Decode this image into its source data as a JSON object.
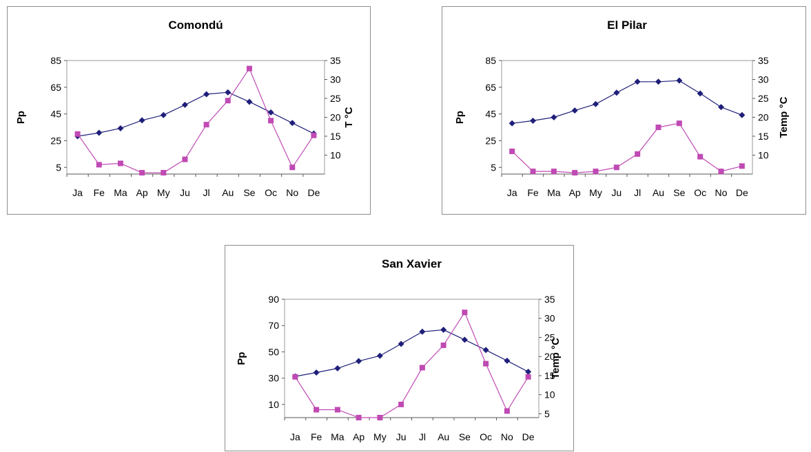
{
  "chart_data": [
    {
      "type": "line",
      "title": "Comondú",
      "categories": [
        "Ja",
        "Fe",
        "Ma",
        "Ap",
        "My",
        "Ju",
        "Jl",
        "Au",
        "Se",
        "Oc",
        "No",
        "De"
      ],
      "ylabel": "Pp",
      "y2label": "T °C",
      "ylim": [
        0,
        85
      ],
      "yticks": [
        5,
        25,
        45,
        65,
        85
      ],
      "y2lim": [
        5,
        35
      ],
      "y2ticks": [
        10,
        15,
        20,
        25,
        30,
        35
      ],
      "grid": false,
      "series": [
        {
          "axis": "right",
          "marker": "diamond",
          "color": "#1f1f7a",
          "values": [
            15.0,
            15.9,
            17.1,
            19.2,
            20.6,
            23.3,
            26.1,
            26.6,
            24.1,
            21.3,
            18.5,
            15.7
          ]
        },
        {
          "axis": "left",
          "marker": "square",
          "color": "#c04ab4",
          "values": [
            30,
            7,
            8,
            1,
            1,
            11,
            37,
            55,
            79,
            40,
            5,
            29
          ]
        }
      ]
    },
    {
      "type": "line",
      "title": "El Pilar",
      "categories": [
        "Ja",
        "Fe",
        "Ma",
        "Ap",
        "My",
        "Ju",
        "Jl",
        "Au",
        "Se",
        "Oc",
        "No",
        "De"
      ],
      "ylabel": "Pp",
      "y2label": "Temp °C",
      "ylim": [
        0,
        85
      ],
      "yticks": [
        5,
        25,
        45,
        65,
        85
      ],
      "y2lim": [
        5,
        35
      ],
      "y2ticks": [
        10,
        15,
        20,
        25,
        30,
        35
      ],
      "grid": false,
      "series": [
        {
          "axis": "right",
          "marker": "diamond",
          "color": "#1f1f7a",
          "values": [
            18.4,
            19.1,
            20.0,
            21.8,
            23.5,
            26.5,
            29.4,
            29.4,
            29.7,
            26.3,
            22.7,
            20.6
          ]
        },
        {
          "axis": "left",
          "marker": "square",
          "color": "#c04ab4",
          "values": [
            17,
            2,
            2,
            1,
            2,
            5,
            15,
            35,
            38,
            13,
            2,
            6
          ]
        }
      ]
    },
    {
      "type": "line",
      "title": "San Xavier",
      "categories": [
        "Ja",
        "Fe",
        "Ma",
        "Ap",
        "My",
        "Ju",
        "Jl",
        "Au",
        "Se",
        "Oc",
        "No",
        "De"
      ],
      "ylabel": "Pp",
      "y2label": "Temp °C",
      "ylim": [
        0,
        90
      ],
      "yticks": [
        10,
        30,
        50,
        70,
        90
      ],
      "y2lim": [
        4,
        35
      ],
      "y2ticks": [
        5,
        10,
        15,
        20,
        25,
        30,
        35
      ],
      "grid": false,
      "series": [
        {
          "axis": "right",
          "marker": "diamond",
          "color": "#1f1f7a",
          "values": [
            14.8,
            15.8,
            16.9,
            18.8,
            20.2,
            23.3,
            26.5,
            27.0,
            24.4,
            21.7,
            18.9,
            16.0
          ]
        },
        {
          "axis": "left",
          "marker": "square",
          "color": "#c04ab4",
          "values": [
            31,
            6,
            6,
            0,
            0,
            10,
            38,
            55,
            80,
            41,
            5,
            31
          ]
        }
      ]
    }
  ]
}
